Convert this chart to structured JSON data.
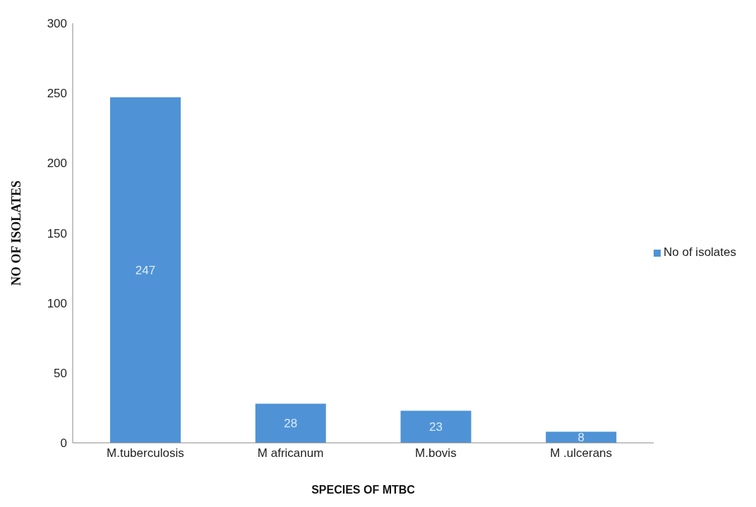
{
  "chart_data": {
    "type": "bar",
    "xlabel": "SPECIES OF MTBC",
    "ylabel": "NO OF ISOLATES",
    "categories": [
      "M.tuberculosis",
      "M africanum",
      "M.bovis",
      "M .ulcerans"
    ],
    "series": [
      {
        "name": "No of isolates",
        "color": "#4f93d6",
        "values": [
          247,
          28,
          23,
          8
        ]
      }
    ],
    "ylim": [
      0,
      300
    ],
    "yticks": [
      0,
      50,
      100,
      150,
      200,
      250,
      300
    ],
    "grid": false,
    "legend": "right",
    "data_labels": true
  }
}
